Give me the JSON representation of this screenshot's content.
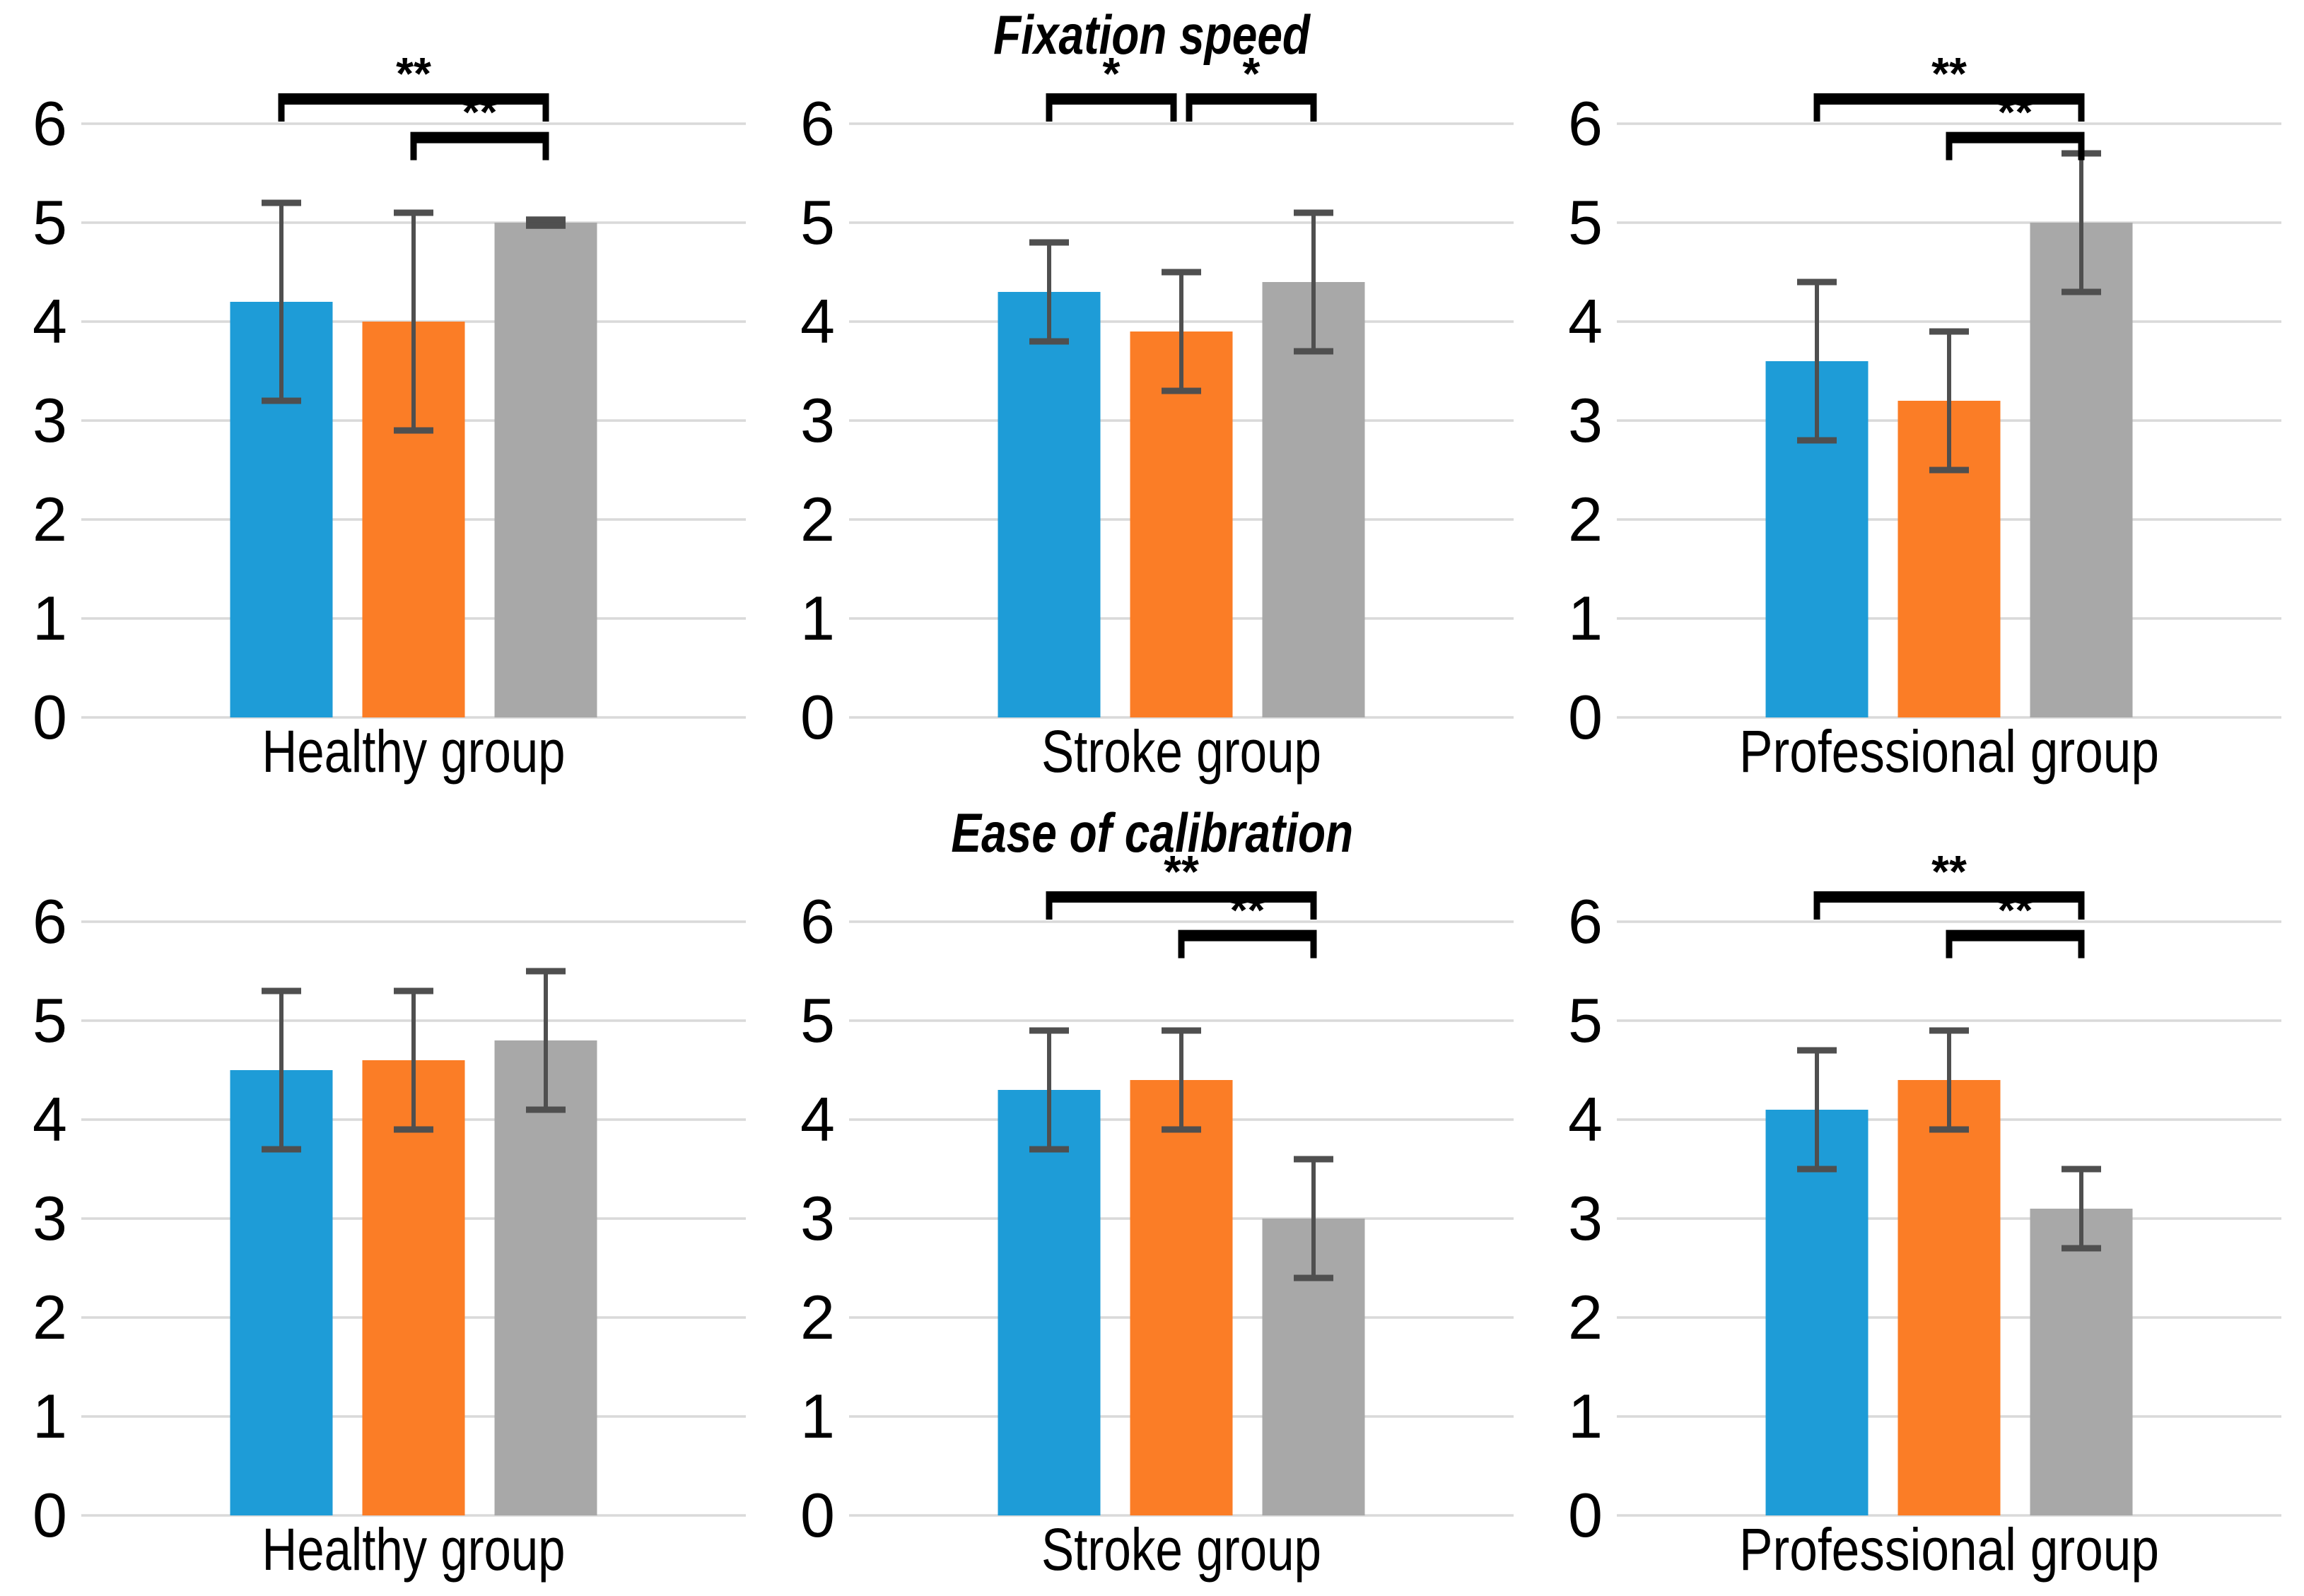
{
  "chart_data": {
    "type": "bar",
    "grid": true,
    "legend": "none",
    "ylim": [
      0,
      6
    ],
    "yticks": [
      0,
      1,
      2,
      3,
      4,
      5,
      6
    ],
    "series_colors": [
      "#1E9CD7",
      "#FB7D26",
      "#A8A8A8"
    ],
    "series_color_names": [
      "blue",
      "orange",
      "gray"
    ],
    "error_bar_color": "#4F4F4F",
    "gridline_color": "#D9D9D9",
    "bracket_color": "#000000",
    "rows": [
      {
        "title": "Fixation speed",
        "panels": [
          {
            "category": "Healthy group",
            "values": [
              4.2,
              4.0,
              5.0
            ],
            "err_low": [
              3.2,
              2.9,
              4.97
            ],
            "err_high": [
              5.2,
              5.1,
              5.03
            ],
            "brackets": [
              {
                "from": 0,
                "to": 2,
                "label": "**",
                "tier": 0
              },
              {
                "from": 1,
                "to": 2,
                "label": "**",
                "tier": 1
              }
            ]
          },
          {
            "category": "Stroke group",
            "values": [
              4.3,
              3.9,
              4.4
            ],
            "err_low": [
              3.8,
              3.3,
              3.7
            ],
            "err_high": [
              4.8,
              4.5,
              5.1
            ],
            "brackets": [
              {
                "from": 0,
                "to": 1,
                "label": "*",
                "tier": 0
              },
              {
                "from": 1,
                "to": 2,
                "label": "*",
                "tier": 0
              }
            ]
          },
          {
            "category": "Professional group",
            "values": [
              3.6,
              3.2,
              5.0
            ],
            "err_low": [
              2.8,
              2.5,
              4.3
            ],
            "err_high": [
              4.4,
              3.9,
              5.7
            ],
            "brackets": [
              {
                "from": 0,
                "to": 2,
                "label": "**",
                "tier": 0
              },
              {
                "from": 1,
                "to": 2,
                "label": "**",
                "tier": 1
              }
            ]
          }
        ]
      },
      {
        "title": "Ease of calibration",
        "panels": [
          {
            "category": "Healthy group",
            "values": [
              4.5,
              4.6,
              4.8
            ],
            "err_low": [
              3.7,
              3.9,
              4.1
            ],
            "err_high": [
              5.3,
              5.3,
              5.5
            ],
            "brackets": []
          },
          {
            "category": "Stroke group",
            "values": [
              4.3,
              4.4,
              3.0
            ],
            "err_low": [
              3.7,
              3.9,
              2.4
            ],
            "err_high": [
              4.9,
              4.9,
              3.6
            ],
            "brackets": [
              {
                "from": 0,
                "to": 2,
                "label": "**",
                "tier": 0
              },
              {
                "from": 1,
                "to": 2,
                "label": "**",
                "tier": 1
              }
            ]
          },
          {
            "category": "Professional group",
            "values": [
              4.1,
              4.4,
              3.1
            ],
            "err_low": [
              3.5,
              3.9,
              2.7
            ],
            "err_high": [
              4.7,
              4.9,
              3.5
            ],
            "brackets": [
              {
                "from": 0,
                "to": 2,
                "label": "**",
                "tier": 0
              },
              {
                "from": 1,
                "to": 2,
                "label": "**",
                "tier": 1
              }
            ]
          }
        ]
      }
    ]
  }
}
